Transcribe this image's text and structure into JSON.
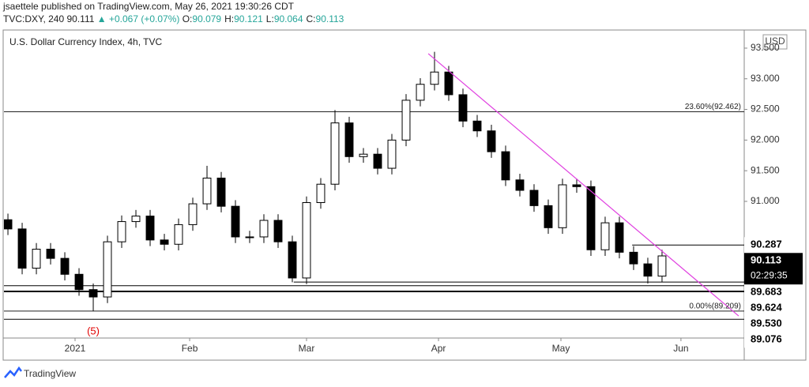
{
  "header": {
    "author_line": "jsaettele published on TradingView.com, May 26, 2021 19:30:26 CDT",
    "symbol": "TVC:DXY, 240",
    "last": "90.111",
    "change": "▲ +0.067 (+0.07%)",
    "ohlc": [
      {
        "key": "O:",
        "value": "90.079"
      },
      {
        "key": "H:",
        "value": "90.121"
      },
      {
        "key": "L:",
        "value": "90.064"
      },
      {
        "key": "C:",
        "value": "90.113"
      }
    ]
  },
  "footer": {
    "brand": "TradingView"
  },
  "chart_data": {
    "type": "candlestick",
    "title": "U.S. Dollar Currency Index, 4h, TVC",
    "currency": "USD",
    "up_color": "#ffffff",
    "down_color": "#000000",
    "wick_color": "#000000",
    "open": [
      90.7,
      90.55,
      89.91,
      90.22,
      90.07,
      89.81,
      89.56,
      89.44,
      90.34,
      90.67,
      90.76,
      90.37,
      90.3,
      90.62,
      90.96,
      91.38,
      90.92,
      90.42,
      90.42,
      90.69,
      90.34,
      89.75,
      90.98,
      91.28,
      92.28,
      91.73,
      91.77,
      91.54,
      92.0,
      92.65,
      92.91,
      93.11,
      92.74,
      92.31,
      92.15,
      91.81,
      91.35,
      91.18,
      90.93,
      90.57,
      91.27,
      91.24,
      90.21,
      90.65,
      90.17,
      89.98,
      89.78
    ],
    "high": [
      90.8,
      90.65,
      90.32,
      90.32,
      90.17,
      89.91,
      89.66,
      90.44,
      90.77,
      90.86,
      90.86,
      90.47,
      90.72,
      91.06,
      91.58,
      91.48,
      91.02,
      90.52,
      90.79,
      90.79,
      90.44,
      91.08,
      91.38,
      92.49,
      92.38,
      91.87,
      91.87,
      92.1,
      92.75,
      93.01,
      93.44,
      93.21,
      92.84,
      92.41,
      92.25,
      91.91,
      91.45,
      91.28,
      91.03,
      91.37,
      91.37,
      91.34,
      90.75,
      90.75,
      90.27,
      90.08,
      90.21
    ],
    "low": [
      90.45,
      89.81,
      89.81,
      89.97,
      89.71,
      89.46,
      89.21,
      89.34,
      90.24,
      90.57,
      90.27,
      90.2,
      90.2,
      90.52,
      90.86,
      90.82,
      90.32,
      90.32,
      90.32,
      90.24,
      89.68,
      89.65,
      90.88,
      91.18,
      91.63,
      91.63,
      91.44,
      91.44,
      91.9,
      92.55,
      92.81,
      92.64,
      92.21,
      92.05,
      91.71,
      91.25,
      91.08,
      90.83,
      90.47,
      90.47,
      91.14,
      90.11,
      90.11,
      90.07,
      89.88,
      89.66,
      89.68
    ],
    "close": [
      90.55,
      89.91,
      90.22,
      90.07,
      89.81,
      89.56,
      89.44,
      90.34,
      90.67,
      90.76,
      90.37,
      90.3,
      90.62,
      90.96,
      91.38,
      90.92,
      90.42,
      90.42,
      90.69,
      90.34,
      89.75,
      90.98,
      91.28,
      92.28,
      91.73,
      91.77,
      91.54,
      92.0,
      92.65,
      92.91,
      93.11,
      92.74,
      92.31,
      92.15,
      91.81,
      91.35,
      91.18,
      90.93,
      90.57,
      91.27,
      91.24,
      90.21,
      90.65,
      90.17,
      89.98,
      89.78,
      90.11
    ],
    "xlim": [
      -0.28,
      51.78
    ],
    "xticks": [
      {
        "value": 4.72,
        "label": "2021"
      },
      {
        "value": 12.78,
        "label": "Feb"
      },
      {
        "value": 21.0,
        "label": "Mar"
      },
      {
        "value": 30.28,
        "label": "Apr"
      },
      {
        "value": 38.89,
        "label": "May"
      },
      {
        "value": 47.33,
        "label": "Jun"
      }
    ],
    "ylim": [
      88.77,
      93.77
    ],
    "yticks": [
      {
        "value": 91.0,
        "label": "91.000"
      },
      {
        "value": 91.5,
        "label": "91.500"
      },
      {
        "value": 92.0,
        "label": "92.000"
      },
      {
        "value": 92.5,
        "label": "92.500"
      },
      {
        "value": 93.0,
        "label": "93.000"
      },
      {
        "value": 93.5,
        "label": "93.500"
      }
    ],
    "fib_levels": [
      {
        "value": 92.462,
        "label": "23.60%(92.462)"
      },
      {
        "value": 89.209,
        "label": "0.00%(89.209)"
      }
    ],
    "levels": [
      {
        "value": 90.287,
        "label": "90.287",
        "from": 43.9
      },
      {
        "value": 89.683,
        "label": "89.683",
        "from": 20.1
      },
      {
        "value": 89.624,
        "label": "89.624",
        "from": -0.28
      },
      {
        "value": 89.53,
        "label": "89.530",
        "from": -0.28
      },
      {
        "value": 89.076,
        "label": "89.076",
        "from": -0.28
      }
    ],
    "last_price": {
      "value": 90.113,
      "label": "90.113",
      "countdown": "02:29:35"
    },
    "trendline": {
      "x": [
        29.56,
        51.39
      ],
      "y": [
        93.41,
        89.13
      ],
      "color": "#e040e0"
    },
    "annotation": {
      "text": "(5)",
      "x": 6,
      "color": "#e00000"
    }
  }
}
